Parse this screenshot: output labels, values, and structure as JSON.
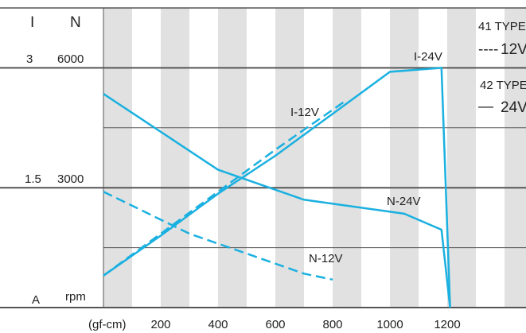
{
  "chart_data": {
    "type": "line",
    "left_axis": {
      "current_header": "I",
      "speed_header": "N",
      "current_unit": "A",
      "speed_unit": "rpm",
      "current_ticks": [
        {
          "value": 3,
          "label": "3"
        },
        {
          "value": 1.5,
          "label": "1.5"
        }
      ],
      "speed_ticks": [
        {
          "value": 6000,
          "label": "6000"
        },
        {
          "value": 3000,
          "label": "3000"
        }
      ],
      "speed_range": [
        0,
        7500
      ]
    },
    "x_axis": {
      "unit": "(gf-cm)",
      "range": [
        0,
        1475
      ],
      "ticks": [
        "200",
        "400",
        "600",
        "800",
        "1000",
        "1200"
      ],
      "tick_values": [
        200,
        400,
        600,
        800,
        1000,
        1200
      ]
    },
    "legend": [
      {
        "type": "41 TYPE",
        "line": "----",
        "voltage": "12V",
        "style": "dashed"
      },
      {
        "type": "42 TYPE",
        "line": "—",
        "voltage": "24V",
        "style": "solid"
      }
    ],
    "series": [
      {
        "name": "I-24V",
        "style": "solid",
        "points": [
          [
            0,
            800
          ],
          [
            200,
            1800
          ],
          [
            400,
            2850
          ],
          [
            600,
            3800
          ],
          [
            800,
            4850
          ],
          [
            1000,
            5900
          ],
          [
            1180,
            6000
          ],
          [
            1210,
            0
          ]
        ]
      },
      {
        "name": "N-24V",
        "style": "solid",
        "points": [
          [
            0,
            5350
          ],
          [
            400,
            3450
          ],
          [
            700,
            2700
          ],
          [
            1050,
            2350
          ],
          [
            1180,
            1950
          ],
          [
            1210,
            0
          ]
        ]
      },
      {
        "name": "I-12V",
        "style": "dashed",
        "points": [
          [
            0,
            800
          ],
          [
            200,
            1850
          ],
          [
            400,
            2900
          ],
          [
            600,
            3950
          ],
          [
            850,
            5200
          ]
        ]
      },
      {
        "name": "N-12V",
        "style": "dashed",
        "points": [
          [
            0,
            2900
          ],
          [
            300,
            1850
          ],
          [
            500,
            1350
          ],
          [
            700,
            850
          ],
          [
            800,
            700
          ]
        ]
      }
    ],
    "colors": {
      "lines": "#1ab0e0",
      "stripes": "#e1e1e1",
      "grid": "#555555",
      "text": "#222222"
    },
    "grid": true
  }
}
